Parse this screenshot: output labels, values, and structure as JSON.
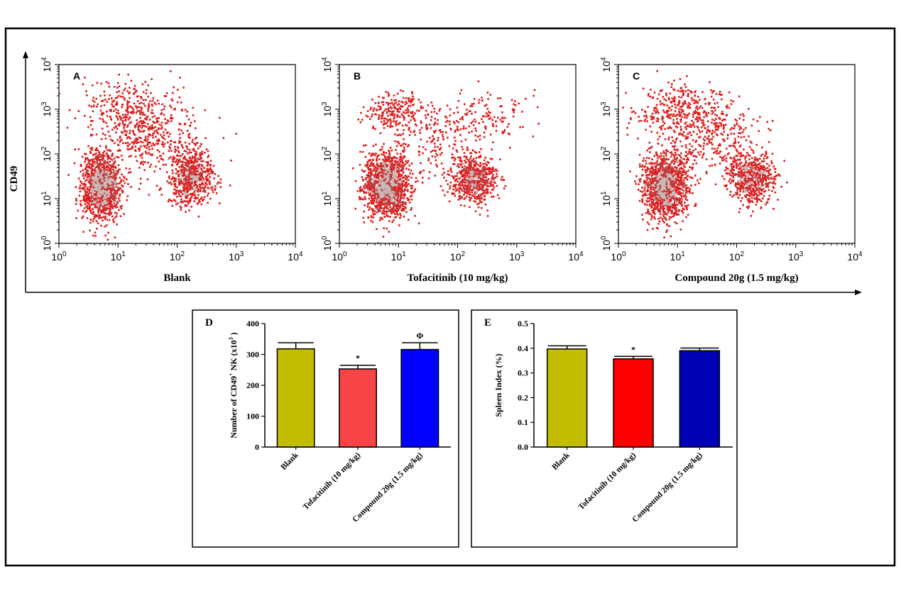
{
  "colors": {
    "dot": "#e01818",
    "dense": "#c23a3a",
    "core": "#c9b9b9",
    "panel_border": "#000000"
  },
  "chart_data": [
    {
      "panel": "A",
      "type": "scatter",
      "xlabel": "Blank",
      "ylabel": "CD49",
      "x_scale": "log",
      "y_scale": "log",
      "xlim": [
        1,
        10000
      ],
      "ylim": [
        1,
        10000
      ],
      "x_ticks": [
        "10^0",
        "10^1",
        "10^2",
        "10^3",
        "10^4"
      ],
      "y_ticks": [
        "10^0",
        "10^1",
        "10^2",
        "10^3",
        "10^4"
      ],
      "populations": [
        {
          "center": [
            5,
            20
          ],
          "spread": [
            1.5,
            2.5
          ],
          "weight": 0.5
        },
        {
          "center": [
            170,
            30
          ],
          "spread": [
            1.6,
            2.0
          ],
          "weight": 0.25
        },
        {
          "center": [
            15,
            1000
          ],
          "spread": [
            3,
            2.5
          ],
          "weight": 0.12
        },
        {
          "center": [
            40,
            200
          ],
          "spread": [
            3,
            3
          ],
          "weight": 0.13
        }
      ]
    },
    {
      "panel": "B",
      "type": "scatter",
      "xlabel": "Tofacitinib (10 mg/kg)",
      "x_scale": "log",
      "y_scale": "log",
      "xlim": [
        1,
        10000
      ],
      "ylim": [
        1,
        10000
      ],
      "x_ticks": [
        "10^0",
        "10^1",
        "10^2",
        "10^3",
        "10^4"
      ],
      "y_ticks": [
        "10^0",
        "10^1",
        "10^2",
        "10^3",
        "10^4"
      ],
      "populations": [
        {
          "center": [
            6,
            20
          ],
          "spread": [
            1.6,
            2.4
          ],
          "weight": 0.55
        },
        {
          "center": [
            180,
            28
          ],
          "spread": [
            1.6,
            2.0
          ],
          "weight": 0.25
        },
        {
          "center": [
            8,
            1000
          ],
          "spread": [
            2,
            1.8
          ],
          "weight": 0.08
        },
        {
          "center": [
            300,
            700
          ],
          "spread": [
            3,
            2
          ],
          "weight": 0.05
        },
        {
          "center": [
            40,
            200
          ],
          "spread": [
            3,
            3
          ],
          "weight": 0.07
        }
      ]
    },
    {
      "panel": "C",
      "type": "scatter",
      "xlabel": "Compound 20g (1.5 mg/kg)",
      "x_scale": "log",
      "y_scale": "log",
      "xlim": [
        1,
        10000
      ],
      "ylim": [
        1,
        10000
      ],
      "x_ticks": [
        "10^0",
        "10^1",
        "10^2",
        "10^3",
        "10^4"
      ],
      "y_ticks": [
        "10^0",
        "10^1",
        "10^2",
        "10^3",
        "10^4"
      ],
      "populations": [
        {
          "center": [
            6,
            20
          ],
          "spread": [
            1.6,
            2.5
          ],
          "weight": 0.5
        },
        {
          "center": [
            170,
            30
          ],
          "spread": [
            1.6,
            2.0
          ],
          "weight": 0.25
        },
        {
          "center": [
            10,
            1000
          ],
          "spread": [
            2.5,
            2.2
          ],
          "weight": 0.12
        },
        {
          "center": [
            40,
            200
          ],
          "spread": [
            3,
            3
          ],
          "weight": 0.13
        }
      ]
    },
    {
      "panel": "D",
      "type": "bar",
      "ylabel": {
        "pre": "Number of CD49",
        "sup1": "+",
        "mid": " NK  (x10",
        "sup2": "3",
        "post": " )"
      },
      "ylim": [
        0,
        400
      ],
      "yticks": [
        0,
        100,
        200,
        300,
        400
      ],
      "categories": [
        "Blank",
        "Tofacitinib (10 mg/kg)",
        "Compound 20g (1.5 mg/kg)"
      ],
      "values": [
        318,
        253,
        316
      ],
      "errors": [
        20,
        12,
        22
      ],
      "bar_colors": [
        "#c2bd00",
        "#f84444",
        "#0000ff"
      ],
      "annotations": [
        "",
        "*",
        "Φ"
      ]
    },
    {
      "panel": "E",
      "type": "bar",
      "ylabel": "Spleen Index (%)",
      "ylim": [
        0,
        0.5
      ],
      "yticks": [
        "0.0",
        "0.1",
        "0.2",
        "0.3",
        "0.4",
        "0.5"
      ],
      "categories": [
        "Blank",
        "Tofacitinib (10 mg/kg)",
        "Compound 20g (1.5 mg/kg)"
      ],
      "values": [
        0.397,
        0.357,
        0.39
      ],
      "errors": [
        0.013,
        0.01,
        0.011
      ],
      "bar_colors": [
        "#c2bd00",
        "#ff0000",
        "#0000b4"
      ],
      "annotations": [
        "",
        "*",
        ""
      ]
    }
  ]
}
